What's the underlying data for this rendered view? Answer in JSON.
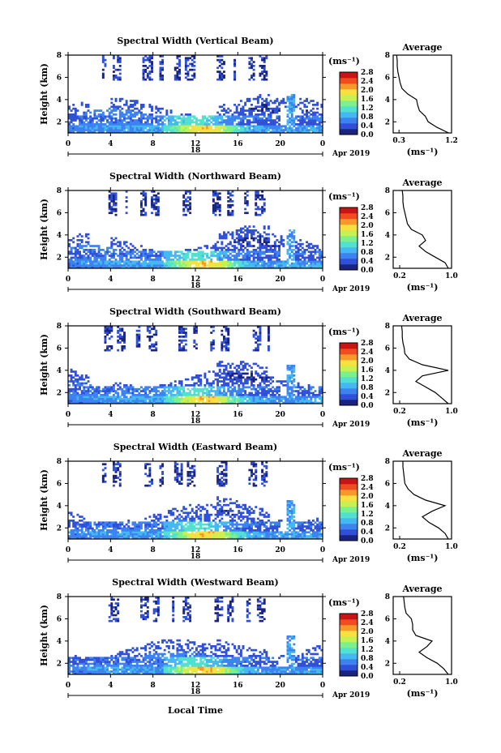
{
  "figure": {
    "footer_label": "Local Time",
    "colors": [
      "#1a237e",
      "#3050d8",
      "#3c82f0",
      "#44b8f0",
      "#52e0d0",
      "#7cf08c",
      "#c8f050",
      "#f8e040",
      "#f89828",
      "#f04c20",
      "#c81414"
    ]
  },
  "chart_data": [
    {
      "type": "heatmap",
      "title": "Spectral Width (Vertical Beam)",
      "ylabel": "Height (km)",
      "y_ticks": [
        "2",
        "4",
        "6",
        "8"
      ],
      "x_ticks": [
        "0",
        "4",
        "8",
        "12",
        "16",
        "20",
        "0"
      ],
      "date_label": "18",
      "month_label": "Apr 2019",
      "xlim": [
        0,
        24
      ],
      "ylim": [
        1,
        8
      ],
      "colorbar": {
        "unit": "(ms⁻¹)",
        "ticks": [
          "0.0",
          "0.4",
          "0.8",
          "1.2",
          "1.6",
          "2.0",
          "2.4",
          "2.8"
        ],
        "range": [
          0,
          2.8
        ]
      },
      "average": {
        "title": "Average",
        "xlabel": "(ms⁻¹)",
        "x_ticks": [
          "0.3",
          "1.2"
        ],
        "xlim": [
          0.2,
          1.2
        ],
        "y_ticks": [
          "2",
          "4",
          "6",
          "8"
        ],
        "heights": [
          1,
          1.5,
          2,
          2.5,
          3,
          3.5,
          4,
          4.5,
          5,
          5.5,
          6,
          6.5,
          7,
          7.5,
          8
        ],
        "values": [
          1.15,
          0.95,
          0.8,
          0.75,
          0.65,
          0.62,
          0.6,
          0.45,
          0.35,
          0.32,
          0.3,
          0.28,
          0.27,
          0.27,
          0.26
        ]
      }
    },
    {
      "type": "heatmap",
      "title": "Spectral Width (Northward Beam)",
      "ylabel": "Height (km)",
      "y_ticks": [
        "2",
        "4",
        "6",
        "8"
      ],
      "x_ticks": [
        "0",
        "4",
        "8",
        "12",
        "16",
        "20",
        "0"
      ],
      "date_label": "18",
      "month_label": "Apr 2019",
      "xlim": [
        0,
        24
      ],
      "ylim": [
        1,
        8
      ],
      "colorbar": {
        "unit": "(ms⁻¹)",
        "ticks": [
          "0.0",
          "0.4",
          "0.8",
          "1.2",
          "1.6",
          "2.0",
          "2.4",
          "2.8"
        ],
        "range": [
          0,
          2.8
        ]
      },
      "average": {
        "title": "Average",
        "xlabel": "(ms⁻¹)",
        "x_ticks": [
          "0.2",
          "1.0"
        ],
        "xlim": [
          0.1,
          1.0
        ],
        "y_ticks": [
          "2",
          "4",
          "6",
          "8"
        ],
        "heights": [
          1,
          1.5,
          2,
          2.5,
          3,
          3.5,
          4,
          4.5,
          5,
          5.5,
          6,
          6.5,
          7,
          7.5,
          8
        ],
        "values": [
          0.95,
          0.9,
          0.75,
          0.6,
          0.5,
          0.6,
          0.55,
          0.38,
          0.32,
          0.3,
          0.28,
          0.26,
          0.25,
          0.25,
          0.24
        ]
      }
    },
    {
      "type": "heatmap",
      "title": "Spectral Width (Southward Beam)",
      "ylabel": "Height (km)",
      "y_ticks": [
        "2",
        "4",
        "6",
        "8"
      ],
      "x_ticks": [
        "0",
        "4",
        "8",
        "12",
        "16",
        "20",
        "0"
      ],
      "date_label": "18",
      "month_label": "Apr 2019",
      "xlim": [
        0,
        24
      ],
      "ylim": [
        1,
        8
      ],
      "colorbar": {
        "unit": "(ms⁻¹)",
        "ticks": [
          "0.0",
          "0.4",
          "0.8",
          "1.2",
          "1.6",
          "2.0",
          "2.4",
          "2.8"
        ],
        "range": [
          0,
          2.8
        ]
      },
      "average": {
        "title": "Average",
        "xlabel": "(ms⁻¹)",
        "x_ticks": [
          "0.2",
          "1.0"
        ],
        "xlim": [
          0.1,
          1.0
        ],
        "y_ticks": [
          "2",
          "4",
          "6",
          "8"
        ],
        "heights": [
          1,
          1.5,
          2,
          2.5,
          3,
          3.5,
          4,
          4.5,
          5,
          5.5,
          6,
          6.5,
          7,
          7.5,
          8
        ],
        "values": [
          0.95,
          0.85,
          0.75,
          0.6,
          0.45,
          0.55,
          0.95,
          0.55,
          0.35,
          0.28,
          0.27,
          0.25,
          0.24,
          0.24,
          0.23
        ]
      }
    },
    {
      "type": "heatmap",
      "title": "Spectral Width (Eastward Beam)",
      "ylabel": "Height (km)",
      "y_ticks": [
        "2",
        "4",
        "6",
        "8"
      ],
      "x_ticks": [
        "0",
        "4",
        "8",
        "12",
        "16",
        "20",
        "0"
      ],
      "date_label": "18",
      "month_label": "Apr 2019",
      "xlim": [
        0,
        24
      ],
      "ylim": [
        1,
        8
      ],
      "colorbar": {
        "unit": "(ms⁻¹)",
        "ticks": [
          "0.0",
          "0.4",
          "0.8",
          "1.2",
          "1.6",
          "2.0",
          "2.4",
          "2.8"
        ],
        "range": [
          0,
          2.8
        ]
      },
      "average": {
        "title": "Average",
        "xlabel": "(ms⁻¹)",
        "x_ticks": [
          "0.2",
          "1.0"
        ],
        "xlim": [
          0.1,
          1.0
        ],
        "y_ticks": [
          "2",
          "4",
          "6",
          "8"
        ],
        "heights": [
          1,
          1.5,
          2,
          2.5,
          3,
          3.5,
          4,
          4.5,
          5,
          5.5,
          6,
          6.5,
          7,
          7.5,
          8
        ],
        "values": [
          0.95,
          0.9,
          0.8,
          0.65,
          0.55,
          0.7,
          0.9,
          0.6,
          0.42,
          0.33,
          0.28,
          0.27,
          0.26,
          0.25,
          0.25
        ]
      }
    },
    {
      "type": "heatmap",
      "title": "Spectral Width (Westward Beam)",
      "ylabel": "Height (km)",
      "y_ticks": [
        "2",
        "4",
        "6",
        "8"
      ],
      "x_ticks": [
        "0",
        "4",
        "8",
        "12",
        "16",
        "20",
        "0"
      ],
      "date_label": "18",
      "month_label": "Apr 2019",
      "xlim": [
        0,
        24
      ],
      "ylim": [
        1,
        8
      ],
      "colorbar": {
        "unit": "(ms⁻¹)",
        "ticks": [
          "0.0",
          "0.4",
          "0.8",
          "1.2",
          "1.6",
          "2.0",
          "2.4",
          "2.8"
        ],
        "range": [
          0,
          2.8
        ]
      },
      "average": {
        "title": "Average",
        "xlabel": "(ms⁻¹)",
        "x_ticks": [
          "0.2",
          "1.0"
        ],
        "xlim": [
          0.1,
          1.0
        ],
        "y_ticks": [
          "2",
          "4",
          "6",
          "8"
        ],
        "heights": [
          1,
          1.5,
          2,
          2.5,
          3,
          3.5,
          4,
          4.5,
          5,
          5.5,
          6,
          6.5,
          7,
          7.5,
          8
        ],
        "values": [
          0.95,
          0.88,
          0.78,
          0.62,
          0.5,
          0.62,
          0.7,
          0.45,
          0.4,
          0.4,
          0.38,
          0.3,
          0.28,
          0.27,
          0.26
        ]
      }
    }
  ]
}
